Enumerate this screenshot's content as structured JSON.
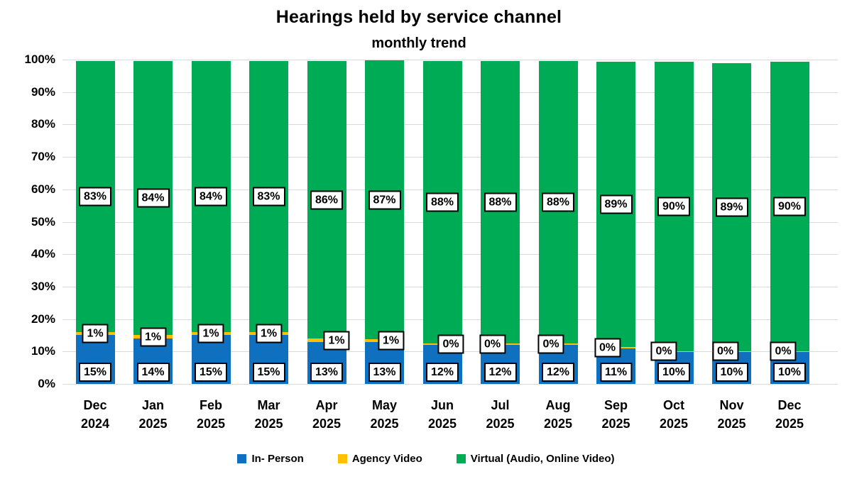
{
  "title": "Hearings held by service channel",
  "subtitle": "monthly trend",
  "chart_data": {
    "type": "bar",
    "stacked": true,
    "title": "Hearings held by service channel",
    "subtitle": "monthly trend",
    "categories": [
      "Dec 2024",
      "Jan 2025",
      "Feb 2025",
      "Mar 2025",
      "Apr 2025",
      "May 2025",
      "Jun 2025",
      "Jul 2025",
      "Aug 2025",
      "Sep 2025",
      "Oct 2025",
      "Nov 2025",
      "Dec 2025"
    ],
    "series": [
      {
        "name": "In- Person",
        "color": "#1070C0",
        "values": [
          15,
          14,
          15,
          15,
          13,
          13,
          12,
          12,
          12,
          11,
          10,
          10,
          10
        ],
        "labels": [
          "15%",
          "14%",
          "15%",
          "15%",
          "13%",
          "13%",
          "12%",
          "12%",
          "12%",
          "11%",
          "10%",
          "10%",
          "10%"
        ]
      },
      {
        "name": "Agency Video",
        "color": "#FFC000",
        "values": [
          1,
          1,
          1,
          1,
          1,
          1,
          0,
          0,
          0,
          0,
          0,
          0,
          0
        ],
        "labels": [
          "1%",
          "1%",
          "1%",
          "1%",
          "1%",
          "1%",
          "0%",
          "0%",
          "0%",
          "0%",
          "0%",
          "0%",
          "0%"
        ]
      },
      {
        "name": "Virtual (Audio, Online Video)",
        "color": "#00AB55",
        "values": [
          83,
          84,
          84,
          83,
          86,
          87,
          88,
          88,
          88,
          89,
          90,
          89,
          90
        ],
        "labels": [
          "83%",
          "84%",
          "84%",
          "83%",
          "86%",
          "87%",
          "88%",
          "88%",
          "88%",
          "89%",
          "90%",
          "89%",
          "90%"
        ]
      }
    ],
    "y_ticks": [
      "0%",
      "10%",
      "20%",
      "30%",
      "40%",
      "50%",
      "60%",
      "70%",
      "80%",
      "90%",
      "100%"
    ],
    "ylim": [
      0,
      100
    ],
    "grid": true,
    "legend_position": "bottom",
    "layout_hints": {
      "agency_plotted": [
        1,
        1,
        1,
        1,
        0.9,
        0.8,
        0.45,
        0.45,
        0.45,
        0.3,
        0.05,
        0.05,
        0.05
      ],
      "total_plotted": [
        99.5,
        99.5,
        99.6,
        99.5,
        99.6,
        99.7,
        99.6,
        99.6,
        99.5,
        99.4,
        99.3,
        99.0,
        99.4
      ],
      "agency_label_dx": [
        0,
        0,
        0,
        0,
        14,
        9,
        12,
        -11,
        -10,
        -12,
        -14,
        -9,
        -9
      ]
    }
  }
}
